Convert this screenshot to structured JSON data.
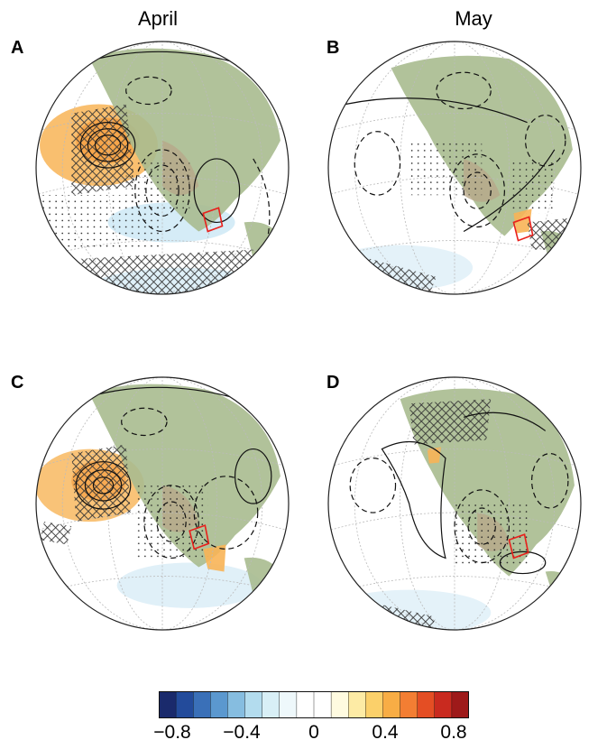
{
  "column_titles": {
    "left": "April",
    "right": "May"
  },
  "panels": [
    {
      "letter": "A",
      "month": "April"
    },
    {
      "letter": "B",
      "month": "May"
    },
    {
      "letter": "C",
      "month": "April"
    },
    {
      "letter": "D",
      "month": "May"
    }
  ],
  "colorbar": {
    "tick_labels": [
      "−0.8",
      "−0.4",
      "0",
      "0.4",
      "0.8"
    ],
    "range": [
      -0.9,
      0.9
    ],
    "colors": [
      "#1a2a6c",
      "#234b9b",
      "#3a70b8",
      "#5b98cf",
      "#86bde0",
      "#b3dcee",
      "#d8eff6",
      "#eef8fb",
      "#ffffff",
      "#ffffff",
      "#fffbe0",
      "#fdeba5",
      "#fbd06a",
      "#f8ad45",
      "#f37e33",
      "#e44e24",
      "#c92a1f",
      "#9e1a1a"
    ]
  },
  "colors": {
    "land": "#a9bb8f",
    "land_dry": "#b8a88a",
    "box": "#e8201c",
    "grid": "#aaaaaa",
    "warm": "#f7a644",
    "cool": "#b7d9ef"
  }
}
